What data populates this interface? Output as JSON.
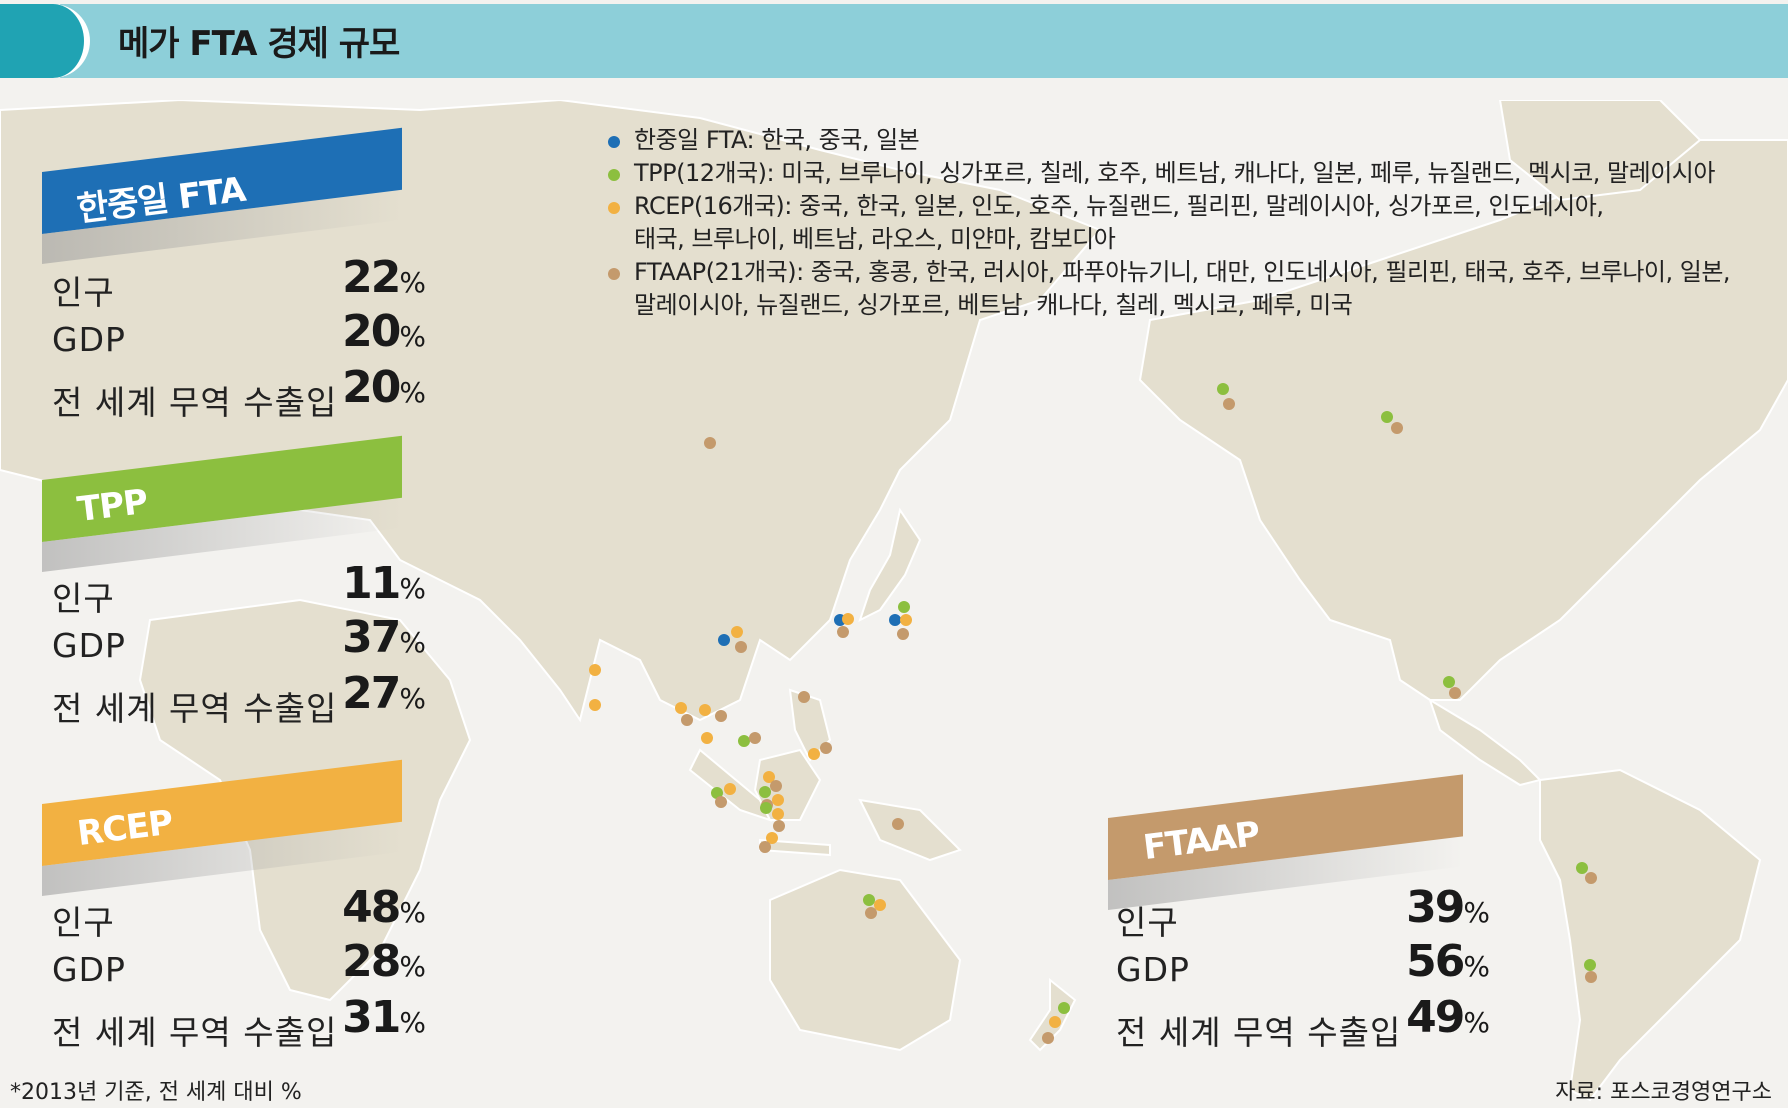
{
  "header": {
    "title": "메가 FTA 경제 규모"
  },
  "legend": [
    {
      "color": "#1e6fb5",
      "lines": [
        "한중일 FTA: 한국, 중국, 일본"
      ]
    },
    {
      "color": "#8cbf3f",
      "lines": [
        "TPP(12개국): 미국, 브루나이, 싱가포르, 칠레, 호주, 베트남, 캐나다, 일본, 페루, 뉴질랜드, 멕시코, 말레이시아"
      ]
    },
    {
      "color": "#f2b142",
      "lines": [
        "RCEP(16개국): 중국, 한국, 일본, 인도, 호주, 뉴질랜드, 필리핀, 말레이시아, 싱가포르, 인도네시아,",
        "태국, 브루나이, 베트남, 라오스, 미얀마, 캄보디아"
      ]
    },
    {
      "color": "#c49a6c",
      "lines": [
        "FTAAP(21개국): 중국, 홍콩, 한국, 러시아, 파푸아뉴기니, 대만, 인도네시아, 필리핀, 태국, 호주, 브루나이, 일본,",
        "말레이시아, 뉴질랜드, 싱가포르, 베트남, 캐나다, 칠레, 멕시코, 페루, 미국"
      ]
    }
  ],
  "blocks": [
    {
      "name": "한중일 FTA",
      "color": "#1e6fb5",
      "stats": [
        {
          "label": "인구",
          "value": "22"
        },
        {
          "label": "GDP",
          "value": "20"
        },
        {
          "label": "전 세계 무역 수출입",
          "value": "20"
        }
      ]
    },
    {
      "name": "TPP",
      "color": "#8cbf3f",
      "stats": [
        {
          "label": "인구",
          "value": "11"
        },
        {
          "label": "GDP",
          "value": "37"
        },
        {
          "label": "전 세계 무역 수출입",
          "value": "27"
        }
      ]
    },
    {
      "name": "RCEP",
      "color": "#f2b142",
      "stats": [
        {
          "label": "인구",
          "value": "48"
        },
        {
          "label": "GDP",
          "value": "28"
        },
        {
          "label": "전 세계 무역 수출입",
          "value": "31"
        }
      ]
    },
    {
      "name": "FTAAP",
      "color": "#c49a6c",
      "stats": [
        {
          "label": "인구",
          "value": "39"
        },
        {
          "label": "GDP",
          "value": "56"
        },
        {
          "label": "전 세계 무역 수출입",
          "value": "49"
        }
      ]
    }
  ],
  "percent_sign": "%",
  "footnote": "*2013년 기준, 전 세계 대비 %",
  "source": "자료: 포스코경영연구소"
}
